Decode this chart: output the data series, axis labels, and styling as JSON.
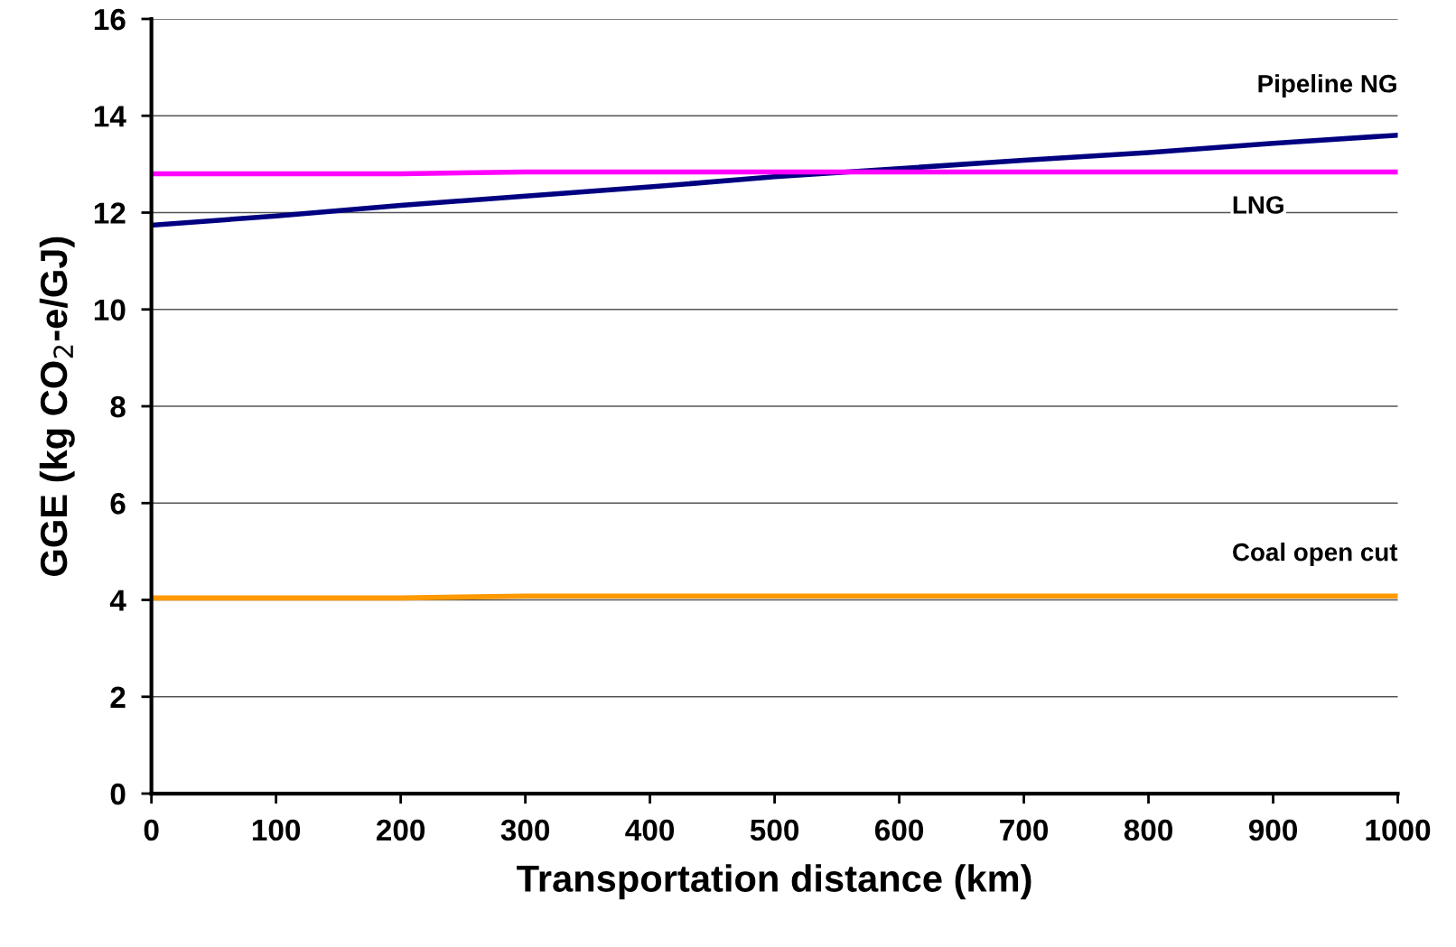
{
  "chart_data": {
    "type": "line",
    "xlabel": "Transportation distance (km)",
    "ylabel": "GGE (kg CO$_{2}$-e/GJ)",
    "x": [
      0,
      100,
      200,
      300,
      400,
      500,
      600,
      700,
      800,
      900,
      1000
    ],
    "series": [
      {
        "name": "Pipeline NG",
        "color": "#000080",
        "values": [
          11.74,
          11.93,
          12.15,
          12.34,
          12.53,
          12.74,
          12.91,
          13.08,
          13.24,
          13.43,
          13.6
        ]
      },
      {
        "name": "LNG",
        "color": "#ff00ff",
        "values": [
          12.8,
          12.8,
          12.8,
          12.84,
          12.84,
          12.84,
          12.84,
          12.84,
          12.84,
          12.84,
          12.84
        ]
      },
      {
        "name": "Coal open cut",
        "color": "#ff9900",
        "values": [
          4.04,
          4.04,
          4.04,
          4.08,
          4.08,
          4.08,
          4.08,
          4.08,
          4.08,
          4.08,
          4.08
        ]
      }
    ],
    "xlim": [
      0,
      1000
    ],
    "xticks": [
      0,
      100,
      200,
      300,
      400,
      500,
      600,
      700,
      800,
      900,
      1000
    ],
    "ylim": [
      0,
      16
    ],
    "yticks": [
      0,
      2,
      4,
      6,
      8,
      10,
      12,
      14,
      16
    ],
    "grid": "y",
    "marker": "none",
    "line_style": "solid",
    "legend": false
  }
}
